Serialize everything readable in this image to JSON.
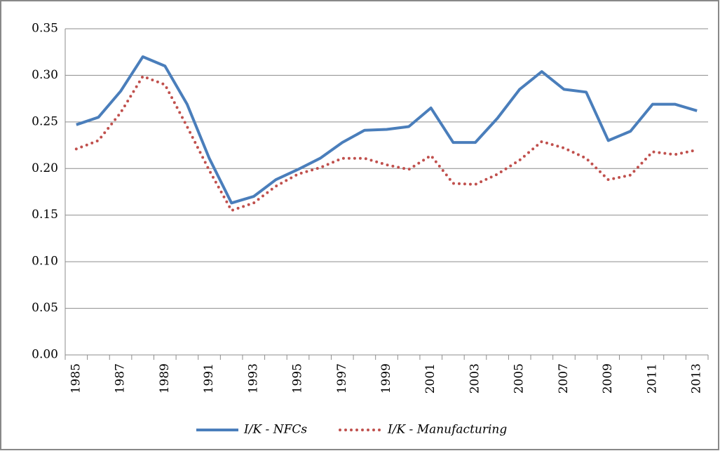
{
  "chart_data": {
    "type": "line",
    "categories": [
      "1985",
      null,
      "1987",
      null,
      "1989",
      null,
      "1991",
      null,
      "1993",
      null,
      "1995",
      null,
      "1997",
      null,
      "1999",
      null,
      "2001",
      null,
      "2003",
      null,
      "2005",
      null,
      "2007",
      null,
      "2009",
      null,
      "2011",
      null,
      "2013"
    ],
    "series": [
      {
        "name": "I/K - NFCs",
        "color": "#4a7ebb",
        "style": "solid",
        "values": [
          0.247,
          0.255,
          0.283,
          0.32,
          0.31,
          0.269,
          0.211,
          0.163,
          0.17,
          0.188,
          0.199,
          0.211,
          0.228,
          0.241,
          0.242,
          0.245,
          0.265,
          0.228,
          0.228,
          0.254,
          0.285,
          0.304,
          0.285,
          0.282,
          0.23,
          0.24,
          0.269,
          0.269,
          0.262
        ]
      },
      {
        "name": "I/K - Manufacturing",
        "color": "#c0504d",
        "style": "dotted",
        "values": [
          0.221,
          0.23,
          0.26,
          0.299,
          0.29,
          0.245,
          0.198,
          0.155,
          0.163,
          0.181,
          0.194,
          0.201,
          0.211,
          0.211,
          0.204,
          0.199,
          0.214,
          0.184,
          0.183,
          0.194,
          0.209,
          0.229,
          0.222,
          0.211,
          0.188,
          0.193,
          0.218,
          0.215,
          0.22
        ]
      }
    ],
    "ylim": [
      0,
      0.35
    ],
    "yticks": [
      {
        "value": 0,
        "label": "0.00"
      },
      {
        "value": 0.05,
        "label": "0.05"
      },
      {
        "value": 0.1,
        "label": "0.10"
      },
      {
        "value": 0.15,
        "label": "0.15"
      },
      {
        "value": 0.2,
        "label": "0.20"
      },
      {
        "value": 0.25,
        "label": "0.25"
      },
      {
        "value": 0.3,
        "label": "0.30"
      },
      {
        "value": 0.35,
        "label": "0.35"
      }
    ],
    "grid": true,
    "legend": "bottom"
  }
}
